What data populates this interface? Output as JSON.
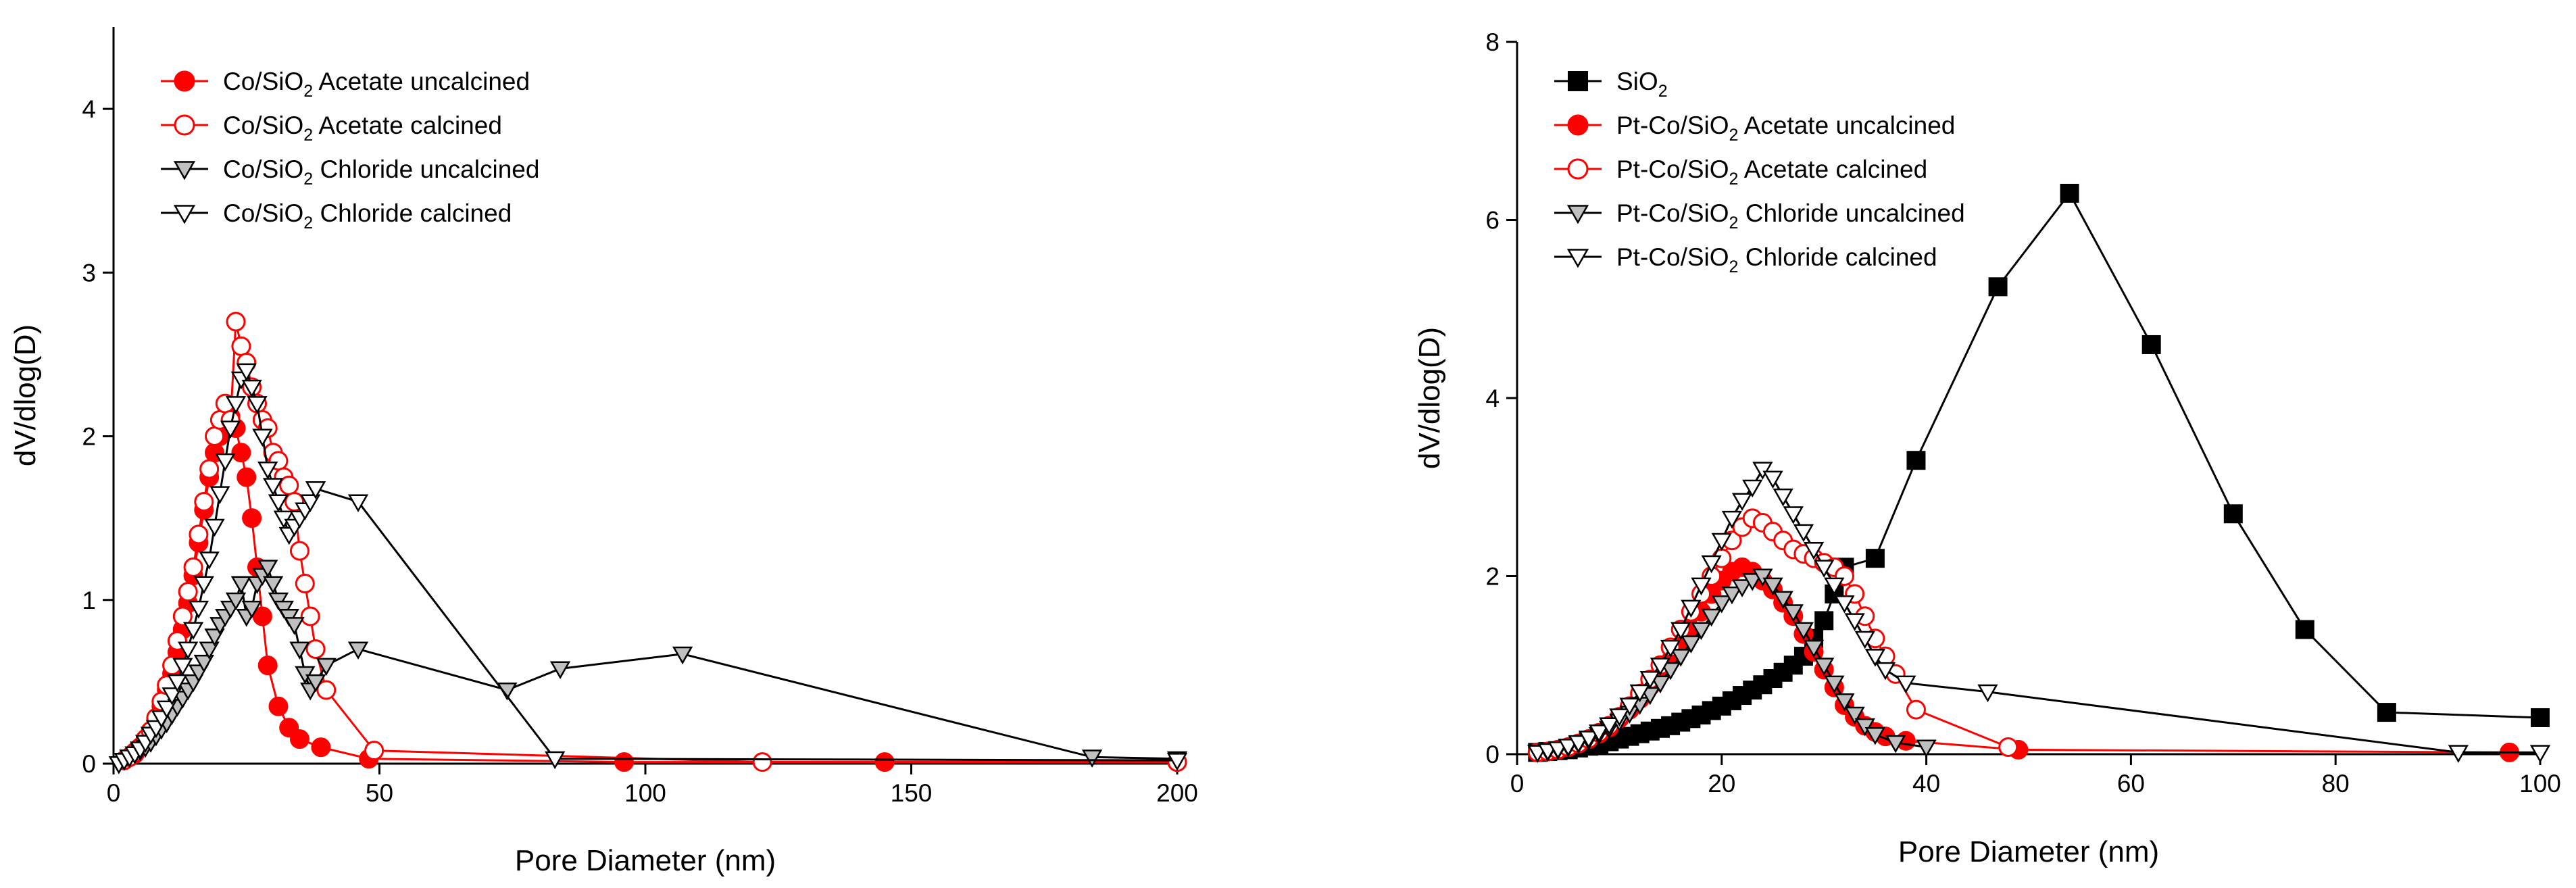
{
  "chart_data": [
    {
      "type": "line",
      "xlabel": "Pore Diameter (nm)",
      "ylabel": "dV/dlog(D)",
      "xlim": [
        0,
        200
      ],
      "ylim": [
        0,
        4.5
      ],
      "xticks": [
        "0",
        "50",
        "100",
        "150",
        "200"
      ],
      "yticks": [
        "0",
        "1",
        "2",
        "3",
        "4"
      ],
      "legend_position": "top-left",
      "series": [
        {
          "name": "Co/SiO2 Acetate uncalcined",
          "legend": {
            "main": "Co/SiO",
            "sub": "2",
            "rest": " Acetate uncalcined"
          },
          "color": "#ff0000",
          "marker": "circle",
          "fill": "#ff0000",
          "x": [
            2,
            3,
            4,
            5,
            6,
            7,
            8,
            9,
            10,
            11,
            12,
            13,
            14,
            15,
            16,
            17,
            18,
            19,
            20,
            21,
            22,
            23,
            24,
            25,
            26,
            27,
            28,
            29,
            31,
            33,
            35,
            39,
            48,
            96,
            145,
            200
          ],
          "y": [
            0.02,
            0.04,
            0.06,
            0.1,
            0.15,
            0.2,
            0.27,
            0.35,
            0.45,
            0.55,
            0.68,
            0.82,
            0.98,
            1.15,
            1.35,
            1.55,
            1.75,
            1.9,
            2.0,
            2.08,
            2.12,
            2.05,
            1.9,
            1.75,
            1.5,
            1.2,
            0.9,
            0.6,
            0.35,
            0.22,
            0.15,
            0.1,
            0.03,
            0.01,
            0.01,
            0.01
          ]
        },
        {
          "name": "Co/SiO2 Acetate calcined",
          "legend": {
            "main": "Co/SiO",
            "sub": "2",
            "rest": " Acetate calcined"
          },
          "color": "#ff0000",
          "marker": "circle",
          "fill": "#ffffff",
          "x": [
            2,
            3,
            4,
            5,
            6,
            7,
            8,
            9,
            10,
            11,
            12,
            13,
            14,
            15,
            16,
            17,
            18,
            19,
            20,
            21,
            22,
            23,
            24,
            25,
            26,
            27,
            28,
            29,
            30,
            31,
            32,
            33,
            34,
            35,
            36,
            37,
            38,
            40,
            49,
            122,
            200
          ],
          "y": [
            0.02,
            0.04,
            0.07,
            0.1,
            0.15,
            0.2,
            0.28,
            0.38,
            0.48,
            0.6,
            0.75,
            0.9,
            1.05,
            1.2,
            1.4,
            1.6,
            1.8,
            2.0,
            2.1,
            2.2,
            2.1,
            2.7,
            2.55,
            2.45,
            2.3,
            2.2,
            2.1,
            2.05,
            1.9,
            1.85,
            1.75,
            1.7,
            1.6,
            1.3,
            1.1,
            0.9,
            0.7,
            0.45,
            0.08,
            0.01,
            0.01
          ]
        },
        {
          "name": "Co/SiO2 Chloride uncalcined",
          "legend": {
            "main": "Co/SiO",
            "sub": "2",
            "rest": " Chloride uncalcined"
          },
          "color": "#000000",
          "marker": "triangle-down",
          "fill": "#c0c0c0",
          "x": [
            1,
            2,
            3,
            4,
            5,
            6,
            7,
            8,
            9,
            10,
            11,
            12,
            13,
            14,
            15,
            16,
            17,
            18,
            19,
            20,
            21,
            22,
            23,
            24,
            25,
            26,
            27,
            28,
            29,
            30,
            31,
            32,
            33,
            34,
            35,
            36,
            37,
            38,
            40,
            46,
            74,
            84,
            107,
            184,
            200
          ],
          "y": [
            0.0,
            0.02,
            0.04,
            0.06,
            0.08,
            0.1,
            0.13,
            0.17,
            0.21,
            0.25,
            0.3,
            0.35,
            0.4,
            0.45,
            0.5,
            0.56,
            0.62,
            0.7,
            0.78,
            0.85,
            0.9,
            0.95,
            1.0,
            1.1,
            0.9,
            0.95,
            1.1,
            1.15,
            1.2,
            1.1,
            1.0,
            0.95,
            0.9,
            0.85,
            0.7,
            0.55,
            0.45,
            0.5,
            0.6,
            0.7,
            0.45,
            0.58,
            0.67,
            0.04,
            0.03
          ]
        },
        {
          "name": "Co/SiO2 Chloride calcined",
          "legend": {
            "main": "Co/SiO",
            "sub": "2",
            "rest": " Chloride calcined"
          },
          "color": "#000000",
          "marker": "triangle-down",
          "fill": "#ffffff",
          "x": [
            1,
            2,
            3,
            4,
            5,
            6,
            7,
            8,
            9,
            10,
            11,
            12,
            13,
            14,
            15,
            16,
            17,
            18,
            19,
            20,
            21,
            22,
            23,
            24,
            25,
            26,
            27,
            28,
            29,
            30,
            31,
            32,
            33,
            34,
            35,
            36,
            37,
            38,
            46,
            83,
            200
          ],
          "y": [
            0.0,
            0.02,
            0.04,
            0.06,
            0.09,
            0.13,
            0.18,
            0.22,
            0.28,
            0.34,
            0.42,
            0.5,
            0.6,
            0.7,
            0.82,
            0.95,
            1.1,
            1.25,
            1.45,
            1.65,
            1.85,
            2.05,
            2.2,
            2.35,
            2.4,
            2.3,
            2.2,
            2.0,
            1.8,
            1.7,
            1.6,
            1.5,
            1.4,
            1.45,
            1.5,
            1.55,
            1.6,
            1.68,
            1.6,
            0.03,
            0.02
          ]
        }
      ]
    },
    {
      "type": "line",
      "xlabel": "Pore Diameter (nm)",
      "ylabel": "dV/dlog(D)",
      "xlim": [
        0,
        100
      ],
      "ylim": [
        0,
        8
      ],
      "xticks": [
        "0",
        "20",
        "40",
        "60",
        "80",
        "100"
      ],
      "yticks": [
        "0",
        "2",
        "4",
        "6",
        "8"
      ],
      "legend_position": "top-left",
      "series": [
        {
          "name": "SiO2",
          "legend": {
            "main": "SiO",
            "sub": "2",
            "rest": ""
          },
          "color": "#000000",
          "marker": "square",
          "fill": "#000000",
          "x": [
            2,
            3,
            4,
            5,
            6,
            7,
            8,
            9,
            10,
            11,
            12,
            13,
            14,
            15,
            16,
            17,
            18,
            19,
            20,
            21,
            22,
            23,
            24,
            25,
            26,
            27,
            28,
            29,
            30,
            31,
            32,
            35,
            39,
            47,
            54,
            62,
            70,
            77,
            85,
            100
          ],
          "y": [
            0.02,
            0.03,
            0.04,
            0.05,
            0.07,
            0.09,
            0.11,
            0.14,
            0.17,
            0.2,
            0.23,
            0.26,
            0.29,
            0.32,
            0.36,
            0.4,
            0.44,
            0.49,
            0.54,
            0.6,
            0.66,
            0.72,
            0.78,
            0.85,
            0.92,
            1.0,
            1.1,
            1.3,
            1.5,
            1.8,
            2.1,
            2.2,
            3.3,
            5.25,
            6.3,
            4.6,
            2.7,
            1.4,
            0.47,
            0.41
          ]
        },
        {
          "name": "Pt-Co/SiO2 Acetate uncalcined",
          "legend": {
            "main": "Pt-Co/SiO",
            "sub": "2",
            "rest": " Acetate uncalcined"
          },
          "color": "#ff0000",
          "marker": "circle",
          "fill": "#ff0000",
          "x": [
            2,
            3,
            4,
            5,
            6,
            7,
            8,
            9,
            10,
            11,
            12,
            13,
            14,
            15,
            16,
            17,
            18,
            19,
            20,
            21,
            22,
            23,
            24,
            25,
            26,
            27,
            28,
            29,
            30,
            31,
            32,
            33,
            34,
            35,
            36,
            38,
            49,
            97
          ],
          "y": [
            0.02,
            0.03,
            0.05,
            0.08,
            0.12,
            0.17,
            0.23,
            0.3,
            0.4,
            0.5,
            0.62,
            0.76,
            0.9,
            1.05,
            1.22,
            1.4,
            1.6,
            1.8,
            1.95,
            2.05,
            2.1,
            2.05,
            1.95,
            1.85,
            1.7,
            1.55,
            1.35,
            1.15,
            0.95,
            0.75,
            0.55,
            0.42,
            0.32,
            0.25,
            0.2,
            0.15,
            0.05,
            0.02
          ]
        },
        {
          "name": "Pt-Co/SiO2 Acetate calcined",
          "legend": {
            "main": "Pt-Co/SiO",
            "sub": "2",
            "rest": " Acetate calcined"
          },
          "color": "#ff0000",
          "marker": "circle",
          "fill": "#ffffff",
          "x": [
            2,
            3,
            4,
            5,
            6,
            7,
            8,
            9,
            10,
            11,
            12,
            13,
            14,
            15,
            16,
            17,
            18,
            19,
            20,
            21,
            22,
            23,
            24,
            25,
            26,
            27,
            28,
            29,
            30,
            31,
            32,
            33,
            34,
            35,
            36,
            37,
            39,
            48
          ],
          "y": [
            0.02,
            0.03,
            0.05,
            0.08,
            0.12,
            0.17,
            0.24,
            0.32,
            0.42,
            0.54,
            0.68,
            0.84,
            1.0,
            1.2,
            1.4,
            1.6,
            1.8,
            2.0,
            2.2,
            2.4,
            2.55,
            2.65,
            2.6,
            2.5,
            2.4,
            2.3,
            2.25,
            2.2,
            2.15,
            2.1,
            2.0,
            1.8,
            1.55,
            1.3,
            1.1,
            0.9,
            0.5,
            0.08
          ]
        },
        {
          "name": "Pt-Co/SiO2 Chloride uncalcined",
          "legend": {
            "main": "Pt-Co/SiO",
            "sub": "2",
            "rest": " Chloride uncalcined"
          },
          "color": "#000000",
          "marker": "triangle-down",
          "fill": "#c0c0c0",
          "x": [
            2,
            3,
            4,
            5,
            6,
            7,
            8,
            9,
            10,
            11,
            12,
            13,
            14,
            15,
            16,
            17,
            18,
            19,
            20,
            21,
            22,
            23,
            24,
            25,
            26,
            27,
            28,
            29,
            30,
            31,
            32,
            33,
            34,
            35,
            37,
            40
          ],
          "y": [
            0.02,
            0.03,
            0.05,
            0.08,
            0.12,
            0.16,
            0.22,
            0.29,
            0.37,
            0.46,
            0.56,
            0.67,
            0.8,
            0.95,
            1.1,
            1.25,
            1.4,
            1.55,
            1.7,
            1.8,
            1.88,
            1.95,
            2.0,
            1.9,
            1.75,
            1.6,
            1.4,
            1.2,
            1.0,
            0.8,
            0.6,
            0.45,
            0.32,
            0.22,
            0.13,
            0.08
          ]
        },
        {
          "name": "Pt-Co/SiO2 Chloride calcined",
          "legend": {
            "main": "Pt-Co/SiO",
            "sub": "2",
            "rest": " Chloride calcined"
          },
          "color": "#000000",
          "marker": "triangle-down",
          "fill": "#ffffff",
          "x": [
            2,
            3,
            4,
            5,
            6,
            7,
            8,
            9,
            10,
            11,
            12,
            13,
            14,
            15,
            16,
            17,
            18,
            19,
            20,
            21,
            22,
            23,
            24,
            25,
            26,
            27,
            28,
            29,
            30,
            31,
            32,
            33,
            34,
            35,
            36,
            38,
            46,
            92,
            100
          ],
          "y": [
            0.02,
            0.04,
            0.06,
            0.09,
            0.13,
            0.18,
            0.25,
            0.33,
            0.43,
            0.55,
            0.7,
            0.85,
            1.0,
            1.2,
            1.4,
            1.65,
            1.9,
            2.15,
            2.4,
            2.65,
            2.85,
            3.0,
            3.2,
            3.1,
            2.9,
            2.7,
            2.5,
            2.3,
            2.1,
            1.9,
            1.7,
            1.5,
            1.3,
            1.1,
            0.95,
            0.8,
            0.7,
            0.02,
            0.02
          ]
        }
      ]
    }
  ]
}
